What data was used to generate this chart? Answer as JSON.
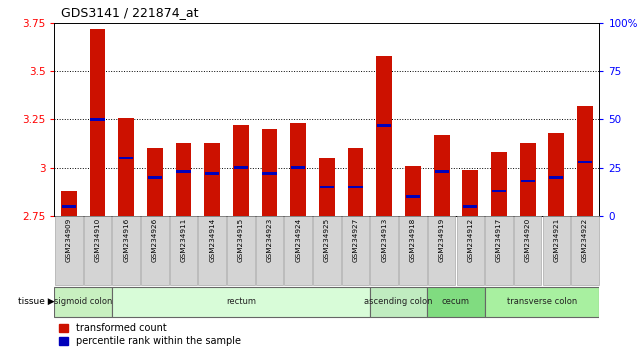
{
  "title": "GDS3141 / 221874_at",
  "samples": [
    "GSM234909",
    "GSM234910",
    "GSM234916",
    "GSM234926",
    "GSM234911",
    "GSM234914",
    "GSM234915",
    "GSM234923",
    "GSM234924",
    "GSM234925",
    "GSM234927",
    "GSM234913",
    "GSM234918",
    "GSM234919",
    "GSM234912",
    "GSM234917",
    "GSM234920",
    "GSM234921",
    "GSM234922"
  ],
  "red_values": [
    2.88,
    3.72,
    3.26,
    3.1,
    3.13,
    3.13,
    3.22,
    3.2,
    3.23,
    3.05,
    3.1,
    3.58,
    3.01,
    3.17,
    2.99,
    3.08,
    3.13,
    3.18,
    3.32
  ],
  "blue_pct": [
    5,
    50,
    30,
    20,
    23,
    22,
    25,
    22,
    25,
    15,
    15,
    47,
    10,
    23,
    5,
    13,
    18,
    20,
    28
  ],
  "ymin": 2.75,
  "ymax": 3.75,
  "yticks_left": [
    2.75,
    3.0,
    3.25,
    3.5,
    3.75
  ],
  "ytick_labels_left": [
    "2.75",
    "3",
    "3.25",
    "3.5",
    "3.75"
  ],
  "yticks_right": [
    0,
    25,
    50,
    75,
    100
  ],
  "ytick_labels_right": [
    "0",
    "25",
    "50",
    "75",
    "100%"
  ],
  "gridlines": [
    3.0,
    3.25,
    3.5
  ],
  "tissue_groups": [
    {
      "label": "sigmoid colon",
      "start": 0,
      "end": 2,
      "color": "#c8f0c0"
    },
    {
      "label": "rectum",
      "start": 2,
      "end": 11,
      "color": "#d8fcd8"
    },
    {
      "label": "ascending colon",
      "start": 11,
      "end": 13,
      "color": "#c0ecc0"
    },
    {
      "label": "cecum",
      "start": 13,
      "end": 15,
      "color": "#80dc80"
    },
    {
      "label": "transverse colon",
      "start": 15,
      "end": 19,
      "color": "#a8f0a0"
    }
  ],
  "bar_color_red": "#cc1100",
  "bar_color_blue": "#0000bb",
  "bar_width": 0.55,
  "legend_red": "transformed count",
  "legend_blue": "percentile rank within the sample",
  "tissue_label": "tissue"
}
